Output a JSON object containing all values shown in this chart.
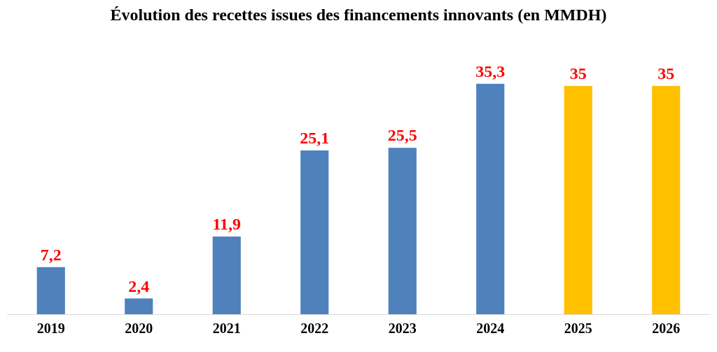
{
  "chart_data": {
    "type": "bar",
    "title": "Évolution des recettes issues des financements innovants (en MMDH)",
    "categories": [
      "2019",
      "2020",
      "2021",
      "2022",
      "2023",
      "2024",
      "2025",
      "2026"
    ],
    "values": [
      7.2,
      2.4,
      11.9,
      25.1,
      25.5,
      35.3,
      35,
      35
    ],
    "colors": [
      "#4f81bd",
      "#4f81bd",
      "#4f81bd",
      "#4f81bd",
      "#4f81bd",
      "#4f81bd",
      "#ffc000",
      "#ffc000"
    ],
    "value_labels": [
      "7,2",
      "2,4",
      "11,9",
      "25,1",
      "25,5",
      "35,3",
      "35",
      "35"
    ],
    "grid": false,
    "legend": false
  }
}
